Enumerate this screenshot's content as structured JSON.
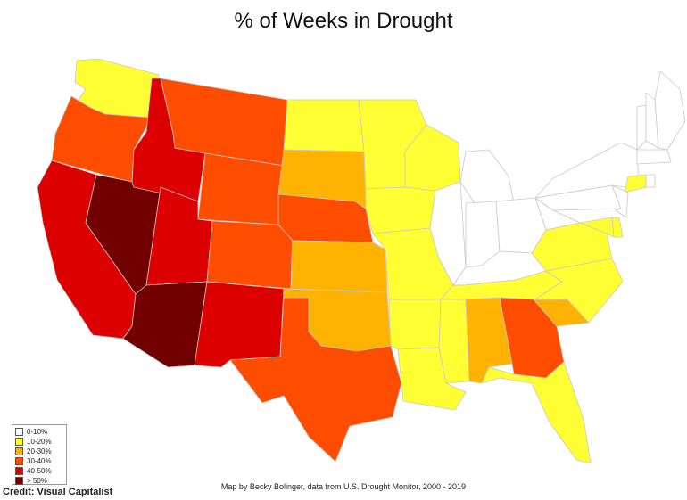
{
  "title": "% of Weeks in Drought",
  "legend": [
    {
      "label": "0-10%",
      "color": "#ffffff"
    },
    {
      "label": "10-20%",
      "color": "#ffff33"
    },
    {
      "label": "20-30%",
      "color": "#ffb300"
    },
    {
      "label": "30-40%",
      "color": "#ff4d00"
    },
    {
      "label": "40-50%",
      "color": "#dd0000"
    },
    {
      "label": "> 50%",
      "color": "#720000"
    }
  ],
  "map_credit": "Map by Becky Bolinger, data from U.S. Drought Monitor, 2000 - 2019",
  "source_credit": "Credit: Visual Capitalist",
  "states": {
    "WA": "10-20%",
    "OR": "30-40%",
    "CA": "40-50%",
    "NV": "> 50%",
    "ID": "40-50%",
    "MT": "30-40%",
    "WY": "30-40%",
    "UT": "40-50%",
    "AZ": "> 50%",
    "CO": "30-40%",
    "NM": "40-50%",
    "ND": "10-20%",
    "SD": "20-30%",
    "NE": "30-40%",
    "KS": "20-30%",
    "OK": "20-30%",
    "TX": "30-40%",
    "MN": "10-20%",
    "IA": "10-20%",
    "MO": "10-20%",
    "AR": "10-20%",
    "LA": "10-20%",
    "WI": "10-20%",
    "IL": "0-10%",
    "MI": "0-10%",
    "IN": "0-10%",
    "OH": "0-10%",
    "KY": "0-10%",
    "TN": "10-20%",
    "MS": "10-20%",
    "AL": "20-30%",
    "GA": "30-40%",
    "FL": "10-20%",
    "SC": "20-30%",
    "NC": "10-20%",
    "VA": "10-20%",
    "WV": "0-10%",
    "PA": "0-10%",
    "NY": "0-10%",
    "VT": "0-10%",
    "NH": "0-10%",
    "ME": "0-10%",
    "MA": "0-10%",
    "CT": "10-20%",
    "RI": "0-10%",
    "NJ": "0-10%",
    "DE": "10-20%",
    "MD": "10-20%"
  }
}
